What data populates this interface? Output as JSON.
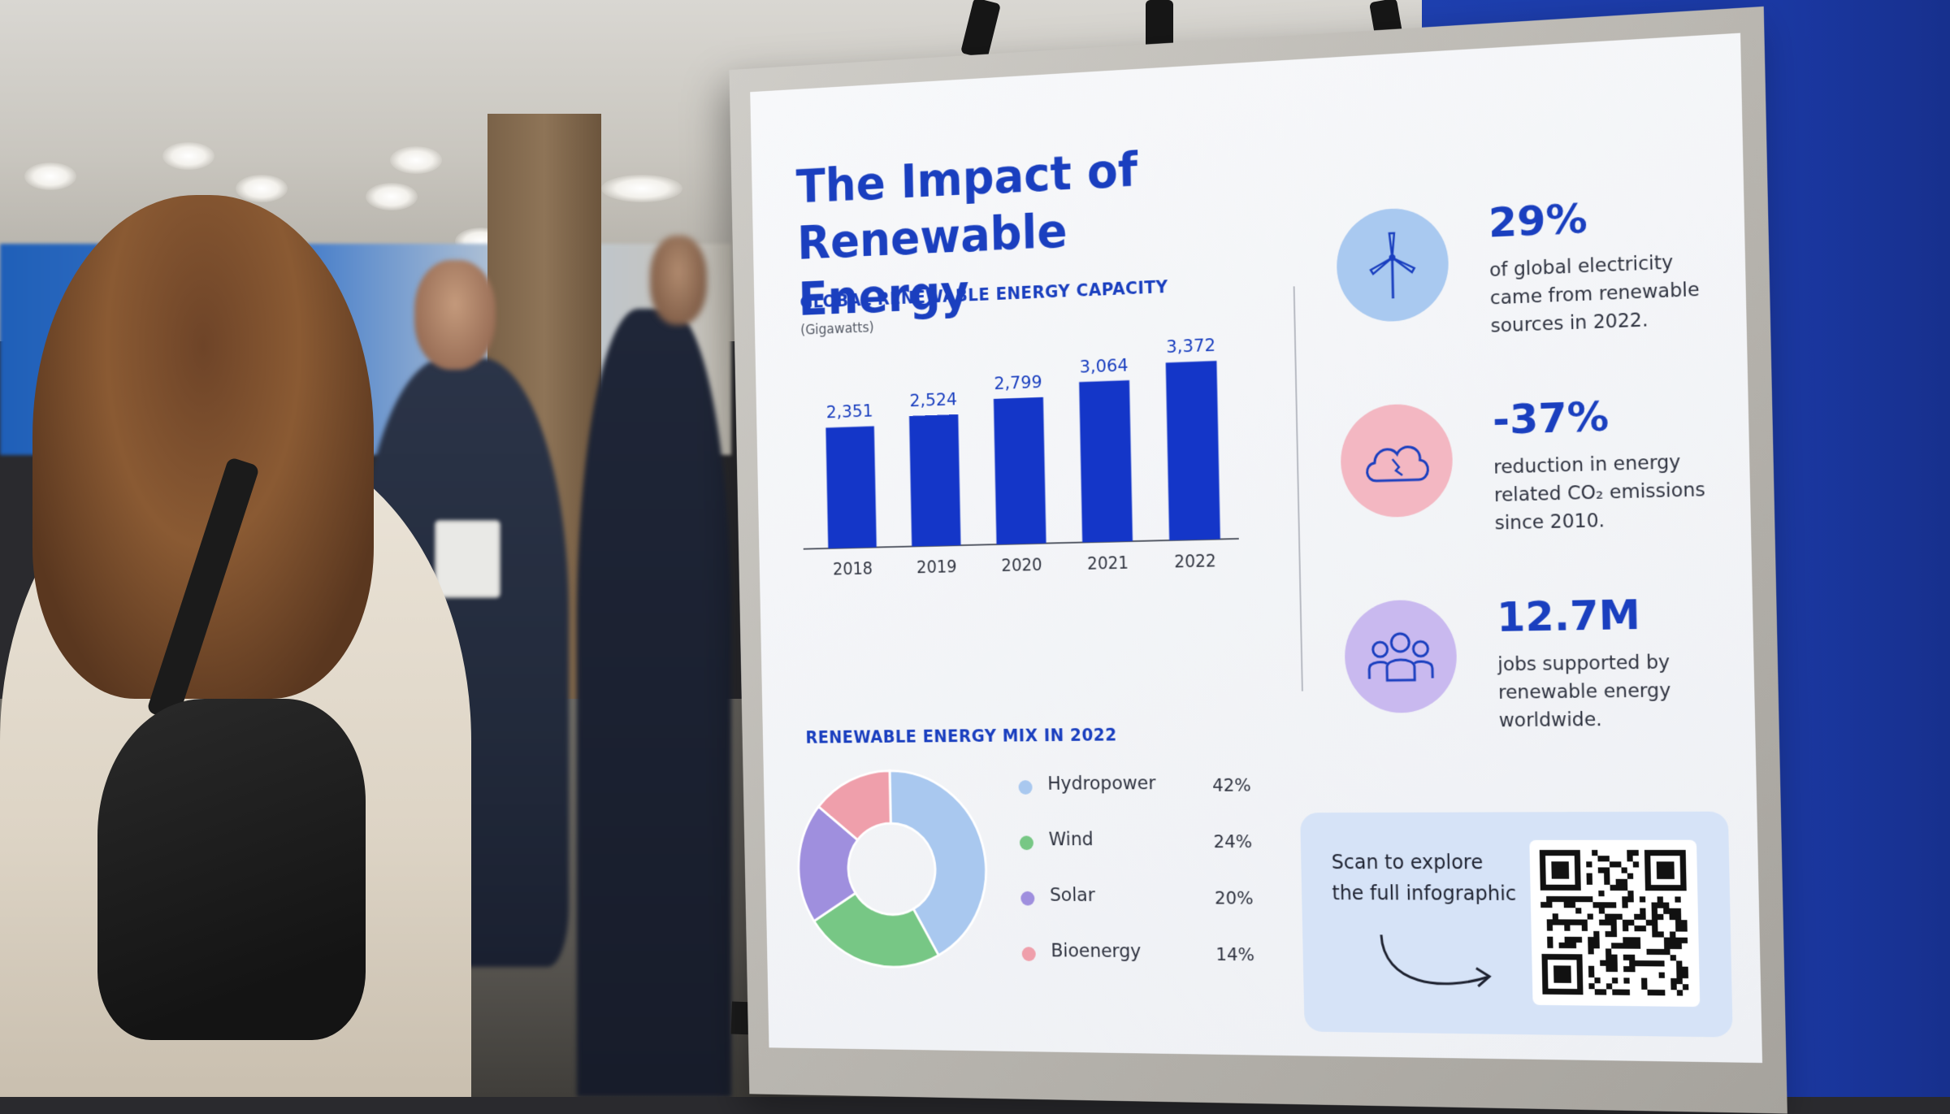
{
  "poster": {
    "title_line1": "The Impact of",
    "title_line2": "Renewable Energy",
    "capacity": {
      "heading": "GLOBAL RENEWABLE ENERGY CAPACITY",
      "units": "(Gigawatts)"
    },
    "mix": {
      "heading": "RENEWABLE ENERGY MIX IN 2022"
    },
    "stats": [
      {
        "value": "29%",
        "text": "of global electricity came from renewable sources in 2022.",
        "icon": "wind-turbine-icon",
        "color": "#a9c9f0"
      },
      {
        "value": "-37%",
        "text": "reduction in energy related CO₂ emissions since 2010.",
        "icon": "cloud-icon",
        "color": "#f3b7c2"
      },
      {
        "value": "12.7M",
        "text": "jobs supported by renewable energy worldwide.",
        "icon": "people-icon",
        "color": "#c9b9ef"
      }
    ],
    "qr": {
      "line1": "Scan to explore",
      "line2": "the full infographic"
    }
  },
  "chart_data": [
    {
      "type": "bar",
      "title": "GLOBAL RENEWABLE ENERGY CAPACITY",
      "ylabel": "(Gigawatts)",
      "categories": [
        "2018",
        "2019",
        "2020",
        "2021",
        "2022"
      ],
      "values": [
        2351,
        2524,
        2799,
        3064,
        3372
      ],
      "value_labels": [
        "2,351",
        "2,524",
        "2,799",
        "3,064",
        "3,372"
      ],
      "ylim": [
        0,
        3500
      ],
      "grid": false,
      "color": "#1436c8"
    },
    {
      "type": "pie",
      "title": "RENEWABLE ENERGY MIX IN 2022",
      "donut": true,
      "labels": [
        "Hydropower",
        "Wind",
        "Solar",
        "Bioenergy"
      ],
      "values": [
        42,
        24,
        20,
        14
      ],
      "value_labels": [
        "42%",
        "24%",
        "20%",
        "14%"
      ],
      "colors": [
        "#a9c8ef",
        "#77c785",
        "#9f8fde",
        "#ef9fab"
      ],
      "legend": "right"
    }
  ]
}
